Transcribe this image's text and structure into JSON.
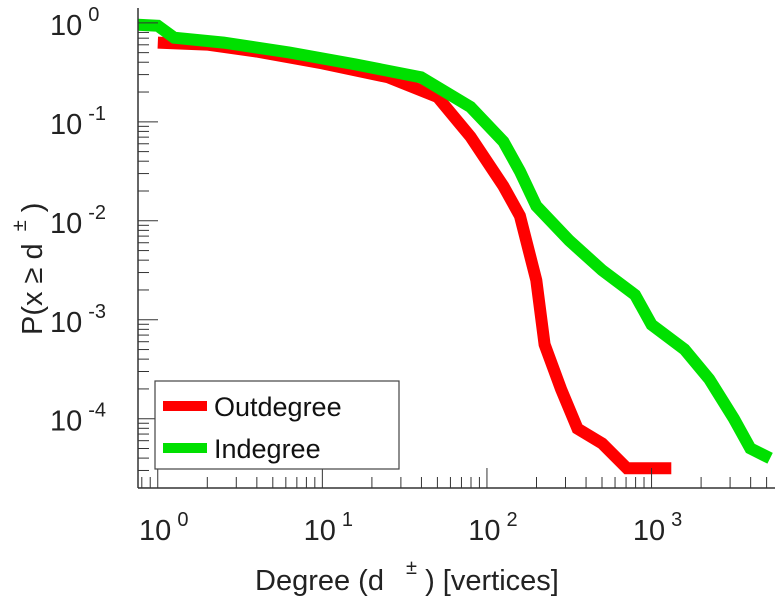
{
  "chart_data": {
    "type": "line",
    "scale": {
      "x": "log",
      "y": "log"
    },
    "xlabel": "Degree (d ±) [vertices]",
    "xlabel_parts": {
      "pre": "Degree (d",
      "sup": "±",
      "post": ") [vertices]"
    },
    "ylabel": "P(x ≥ d±)",
    "ylabel_parts": {
      "pre": "P(x ≥ d",
      "sup": "±",
      "post": ")"
    },
    "xlim_log10": [
      -0.12,
      3.75
    ],
    "ylim_log10": [
      -4.7,
      0.15
    ],
    "x_ticks": [
      {
        "base": "10",
        "exp": "0",
        "log10": 0
      },
      {
        "base": "10",
        "exp": "1",
        "log10": 1
      },
      {
        "base": "10",
        "exp": "2",
        "log10": 2
      },
      {
        "base": "10",
        "exp": "3",
        "log10": 3
      }
    ],
    "y_ticks": [
      {
        "base": "10",
        "exp": "0",
        "log10": 0
      },
      {
        "base": "10",
        "exp": "-1",
        "log10": -1
      },
      {
        "base": "10",
        "exp": "-2",
        "log10": -2
      },
      {
        "base": "10",
        "exp": "-3",
        "log10": -3
      },
      {
        "base": "10",
        "exp": "-4",
        "log10": -4
      }
    ],
    "legend": {
      "placement": "bottom-left"
    },
    "series": [
      {
        "name": "Outdegree",
        "color": "#ff0000",
        "points_log10": [
          [
            0.0,
            -0.2
          ],
          [
            0.3,
            -0.22
          ],
          [
            0.6,
            -0.29
          ],
          [
            1.0,
            -0.41
          ],
          [
            1.4,
            -0.55
          ],
          [
            1.7,
            -0.75
          ],
          [
            1.9,
            -1.15
          ],
          [
            2.1,
            -1.65
          ],
          [
            2.2,
            -1.95
          ],
          [
            2.3,
            -2.6
          ],
          [
            2.35,
            -3.25
          ],
          [
            2.45,
            -3.7
          ],
          [
            2.55,
            -4.1
          ],
          [
            2.7,
            -4.25
          ],
          [
            2.85,
            -4.5
          ],
          [
            3.12,
            -4.5
          ]
        ]
      },
      {
        "name": "Indegree",
        "color": "#00e000",
        "points_log10": [
          [
            -0.12,
            -0.02
          ],
          [
            0.0,
            -0.03
          ],
          [
            0.1,
            -0.15
          ],
          [
            0.4,
            -0.2
          ],
          [
            0.8,
            -0.3
          ],
          [
            1.2,
            -0.42
          ],
          [
            1.6,
            -0.55
          ],
          [
            1.9,
            -0.85
          ],
          [
            2.1,
            -1.2
          ],
          [
            2.2,
            -1.5
          ],
          [
            2.3,
            -1.85
          ],
          [
            2.5,
            -2.2
          ],
          [
            2.7,
            -2.5
          ],
          [
            2.9,
            -2.75
          ],
          [
            3.0,
            -3.05
          ],
          [
            3.2,
            -3.3
          ],
          [
            3.35,
            -3.6
          ],
          [
            3.5,
            -4.0
          ],
          [
            3.6,
            -4.3
          ],
          [
            3.72,
            -4.4
          ]
        ]
      }
    ]
  }
}
